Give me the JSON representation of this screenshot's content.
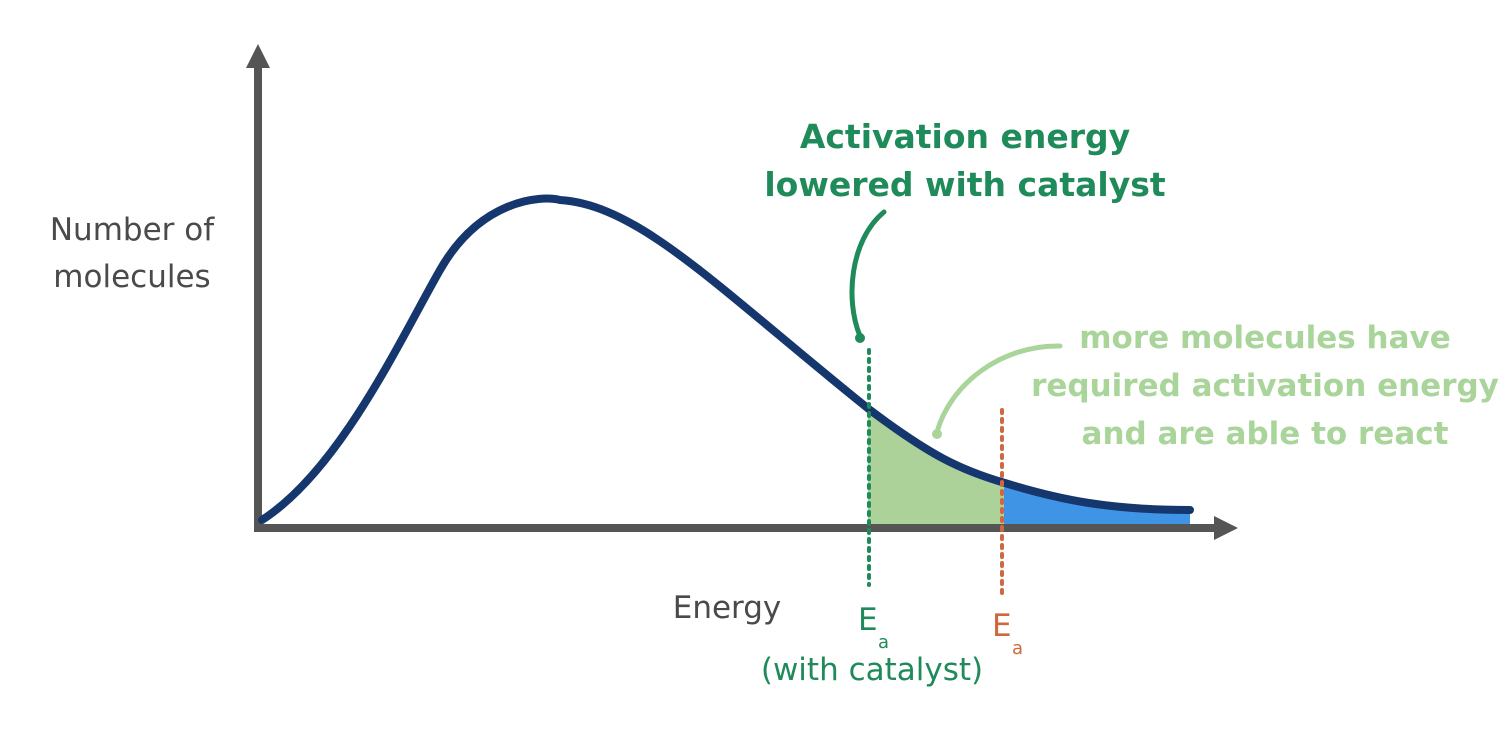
{
  "axes": {
    "y_label": [
      "Number of",
      "molecules"
    ],
    "x_label": "Energy"
  },
  "annotations": {
    "catalyst_note": [
      "Activation energy",
      "lowered with catalyst"
    ],
    "more_note": [
      "more molecules have",
      "required activation energy",
      "and are able to react"
    ]
  },
  "markers": [
    {
      "symbol": "E",
      "subscript": "a",
      "caption": "(with catalyst)"
    },
    {
      "symbol": "E",
      "subscript": "a"
    }
  ]
}
